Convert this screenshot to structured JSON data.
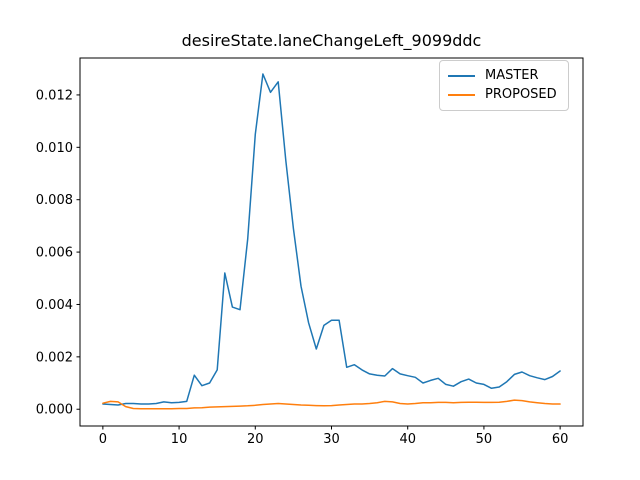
{
  "title": "desireState.laneChangeLeft_9099ddc",
  "chart_data": {
    "type": "line",
    "title": "desireState.laneChangeLeft_9099ddc",
    "xlabel": "",
    "ylabel": "",
    "grid": false,
    "legend_position": "upper right",
    "xlim": [
      -3,
      63
    ],
    "ylim": [
      -0.00064,
      0.01341
    ],
    "x_ticks": [
      {
        "value": 0,
        "label": "0"
      },
      {
        "value": 10,
        "label": "10"
      },
      {
        "value": 20,
        "label": "20"
      },
      {
        "value": 30,
        "label": "30"
      },
      {
        "value": 40,
        "label": "40"
      },
      {
        "value": 50,
        "label": "50"
      },
      {
        "value": 60,
        "label": "60"
      }
    ],
    "y_ticks": [
      {
        "value": 0.0,
        "label": "0.000"
      },
      {
        "value": 0.002,
        "label": "0.002"
      },
      {
        "value": 0.004,
        "label": "0.004"
      },
      {
        "value": 0.006,
        "label": "0.006"
      },
      {
        "value": 0.008,
        "label": "0.008"
      },
      {
        "value": 0.01,
        "label": "0.010"
      },
      {
        "value": 0.012,
        "label": "0.012"
      }
    ],
    "x": [
      0,
      1,
      2,
      3,
      4,
      5,
      6,
      7,
      8,
      9,
      10,
      11,
      12,
      13,
      14,
      15,
      16,
      17,
      18,
      19,
      20,
      21,
      22,
      23,
      24,
      25,
      26,
      27,
      28,
      29,
      30,
      31,
      32,
      33,
      34,
      35,
      36,
      37,
      38,
      39,
      40,
      41,
      42,
      43,
      44,
      45,
      46,
      47,
      48,
      49,
      50,
      51,
      52,
      53,
      54,
      55,
      56,
      57,
      58,
      59,
      60
    ],
    "series": [
      {
        "name": "MASTER",
        "color": "#1f77b4",
        "values": [
          0.0002,
          0.00018,
          0.00016,
          0.00022,
          0.00022,
          0.0002,
          0.0002,
          0.00022,
          0.00028,
          0.00025,
          0.00026,
          0.0003,
          0.0013,
          0.0009,
          0.001,
          0.0015,
          0.0052,
          0.0039,
          0.0038,
          0.0065,
          0.0105,
          0.0128,
          0.0121,
          0.0125,
          0.0095,
          0.0069,
          0.0047,
          0.0033,
          0.0023,
          0.0032,
          0.0034,
          0.0034,
          0.0016,
          0.0017,
          0.0015,
          0.00135,
          0.0013,
          0.00127,
          0.00155,
          0.00135,
          0.00128,
          0.00122,
          0.001,
          0.0011,
          0.00118,
          0.00095,
          0.00088,
          0.00105,
          0.00115,
          0.001,
          0.00095,
          0.0008,
          0.00085,
          0.00105,
          0.00133,
          0.00142,
          0.00128,
          0.0012,
          0.00113,
          0.00125,
          0.00146
        ]
      },
      {
        "name": "PROPOSED",
        "color": "#ff7f0e",
        "values": [
          0.00023,
          0.0003,
          0.00028,
          0.0001,
          3e-05,
          2e-05,
          2e-05,
          2e-05,
          2e-05,
          2e-05,
          3e-05,
          3e-05,
          5e-05,
          6e-05,
          8e-05,
          9e-05,
          0.0001,
          0.00011,
          0.00012,
          0.00013,
          0.00015,
          0.00018,
          0.0002,
          0.00022,
          0.0002,
          0.00018,
          0.00016,
          0.00015,
          0.00014,
          0.00013,
          0.00014,
          0.00016,
          0.00018,
          0.0002,
          0.0002,
          0.00022,
          0.00025,
          0.0003,
          0.00028,
          0.00022,
          0.0002,
          0.00022,
          0.00025,
          0.00025,
          0.00026,
          0.00026,
          0.00025,
          0.00026,
          0.00027,
          0.00027,
          0.00026,
          0.00026,
          0.00027,
          0.0003,
          0.00035,
          0.00033,
          0.00028,
          0.00025,
          0.00022,
          0.0002,
          0.0002
        ]
      }
    ]
  }
}
